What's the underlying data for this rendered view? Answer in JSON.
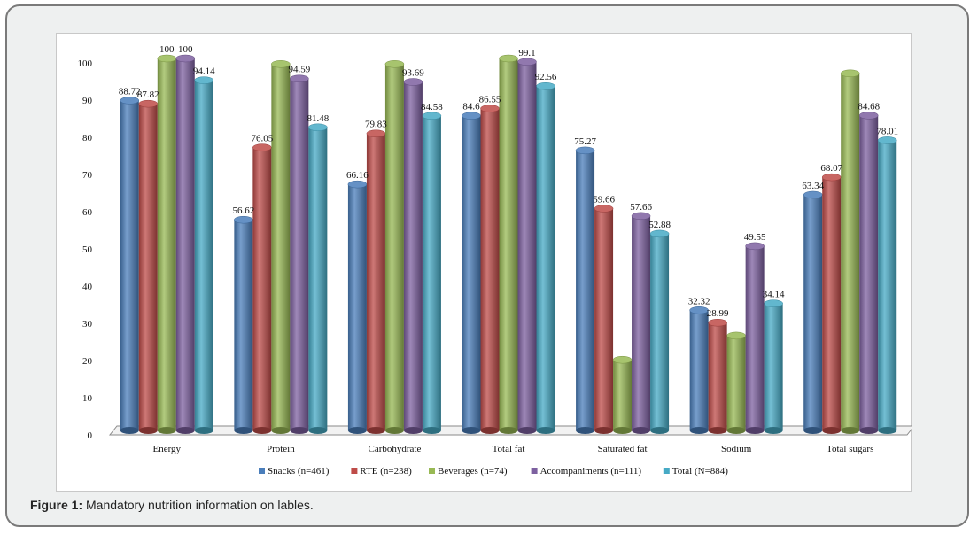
{
  "caption": {
    "label": "Figure 1:",
    "text": "Mandatory nutrition information on lables."
  },
  "chart_data": {
    "type": "bar",
    "categories": [
      "Energy",
      "Protein",
      "Carbohydrate",
      "Total fat",
      "Saturated fat",
      "Sodium",
      "Total sugars"
    ],
    "series": [
      {
        "name": "Snacks (n=461)",
        "color": "#4a7ebb",
        "values": [
          88.72,
          56.62,
          66.16,
          84.6,
          75.27,
          32.32,
          63.34
        ],
        "labels": [
          "88.72",
          "56.62",
          "66.16",
          "84.6",
          "75.27",
          "32.32",
          "63.34"
        ]
      },
      {
        "name": "RTE (n=238)",
        "color": "#be4b48",
        "values": [
          87.82,
          76.05,
          79.83,
          86.55,
          59.66,
          28.99,
          68.07
        ],
        "labels": [
          "87.82",
          "76.05",
          "79.83",
          "86.55",
          "59.66",
          "28.99",
          "68.07"
        ]
      },
      {
        "name": "Beverages (n=74)",
        "color": "#98b954",
        "values": [
          100,
          98.5,
          98.5,
          100,
          19,
          25.5,
          96
        ],
        "labels": [
          "100",
          "",
          "",
          "",
          "",
          "",
          ""
        ]
      },
      {
        "name": "Accompaniments (n=111)",
        "color": "#7d60a0",
        "values": [
          100,
          94.59,
          93.69,
          99.1,
          57.66,
          49.55,
          84.68
        ],
        "labels": [
          "100",
          "94.59",
          "93.69",
          "99.1",
          "57.66",
          "49.55",
          "84.68"
        ]
      },
      {
        "name": "Total (N=884)",
        "color": "#46aac5",
        "values": [
          94.14,
          81.48,
          84.58,
          92.56,
          52.88,
          34.14,
          78.01
        ],
        "labels": [
          "94.14",
          "81.48",
          "84.58",
          "92.56",
          "52.88",
          "34.14",
          "78.01"
        ]
      }
    ],
    "ylim": [
      0,
      100
    ],
    "yticks": [
      "0",
      "10",
      "20",
      "30",
      "40",
      "50",
      "60",
      "70",
      "80",
      "90",
      "100"
    ],
    "grid": false,
    "legend_position": "bottom",
    "bar_style": "3d-cylinder"
  }
}
